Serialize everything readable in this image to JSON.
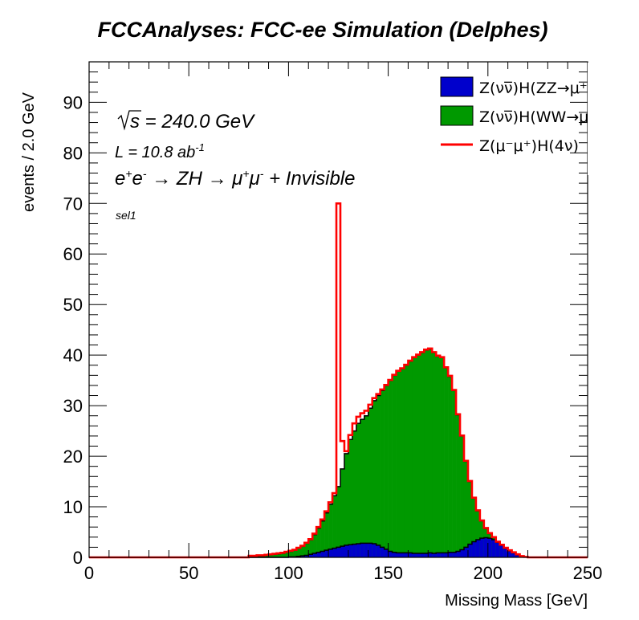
{
  "chart_data": {
    "type": "bar",
    "subtype": "stacked-histogram",
    "title": "FCCAnalyses: FCC-ee Simulation (Delphes)",
    "xlabel": "Missing Mass [GeV]",
    "ylabel": "events / 2.0 GeV",
    "xlim": [
      0,
      250
    ],
    "ylim": [
      0,
      98
    ],
    "bin_width": 2.0,
    "x_ticks": [
      0,
      50,
      100,
      150,
      200,
      250
    ],
    "y_ticks": [
      0,
      10,
      20,
      30,
      40,
      50,
      60,
      70,
      80,
      90
    ],
    "grid": false,
    "legend_position": "top-right",
    "annotations": {
      "sqrt_s": "√s = 240.0 GeV",
      "sqrt_symbol": "√",
      "sqrt_s_text": "s = 240.0 GeV",
      "lumi_prefix": "L = 10.8 ab",
      "lumi_exp": "-1",
      "process_parts": [
        "e",
        "+",
        "e",
        "-",
        " → ZH  → μ",
        "+",
        "μ",
        "-",
        " + Invisible"
      ],
      "process": "e+e- → ZH → μ+μ- + Invisible",
      "selection": "sel1"
    },
    "bin_edges_start": 80,
    "series": [
      {
        "name": "Z(νν̅)H(ZZ→μ+μ-ν̅ν)",
        "legend_label": "Z(νν̅)H(ZZ→μ⁺μ⁻ν̅ν",
        "style": "fill",
        "color": "#0000cc",
        "values": [
          0,
          0,
          0,
          0,
          0,
          0,
          0,
          0,
          0,
          0,
          0.1,
          0.1,
          0.2,
          0.3,
          0.4,
          0.6,
          0.8,
          1.0,
          1.2,
          1.4,
          1.6,
          1.8,
          2.0,
          2.2,
          2.4,
          2.5,
          2.6,
          2.7,
          2.8,
          2.8,
          2.8,
          2.7,
          2.4,
          2.0,
          1.6,
          1.2,
          1.0,
          0.9,
          0.9,
          0.9,
          0.9,
          0.8,
          0.8,
          0.8,
          0.8,
          0.9,
          0.8,
          0.9,
          0.9,
          0.9,
          1.0,
          1.0,
          1.2,
          1.5,
          2.0,
          2.6,
          3.1,
          3.5,
          3.8,
          3.9,
          3.8,
          3.5,
          3.0,
          2.4,
          1.8,
          1.3,
          0.9,
          0.5,
          0.2,
          0.05
        ]
      },
      {
        "name": "Z(νν̅)H(WW→μ+νμ-ν̅)",
        "legend_label": "Z(νν̅)H(WW→μ⁺νμ",
        "style": "fill",
        "color": "#009900",
        "values": [
          0.2,
          0.2,
          0.3,
          0.3,
          0.4,
          0.5,
          0.6,
          0.7,
          0.8,
          1.0,
          1.1,
          1.3,
          1.6,
          1.9,
          2.4,
          2.9,
          3.7,
          4.8,
          6.0,
          7.4,
          8.9,
          10.4,
          12.0,
          15.3,
          18.1,
          20.8,
          22.4,
          23.8,
          24.5,
          25.2,
          26.7,
          28.3,
          29.6,
          31.0,
          32.4,
          33.8,
          35.0,
          35.9,
          36.4,
          37.1,
          37.9,
          38.7,
          39.2,
          39.7,
          40.2,
          40.3,
          39.7,
          38.9,
          38.6,
          36.6,
          34.8,
          32.0,
          27.0,
          22.5,
          17.0,
          12.4,
          8.6,
          5.7,
          3.4,
          1.8,
          0.9,
          0.4,
          0.0,
          0.0,
          0.0,
          0.0,
          0.0,
          0.0,
          0.0,
          0.0
        ]
      },
      {
        "name": "Z(μ-μ+)H(4ν)",
        "legend_label": "Z(μ⁻μ⁺)H(4ν)",
        "style": "line",
        "color": "#ff0000",
        "values": [
          0.1,
          0.1,
          0.1,
          0.1,
          0.1,
          0.1,
          0.1,
          0.1,
          0.1,
          0.1,
          0.1,
          0.1,
          0.1,
          0.1,
          0.1,
          0.1,
          0.2,
          0.2,
          0.3,
          0.3,
          0.4,
          0.5,
          56.0,
          5.5,
          0.5,
          0.9,
          1.5,
          1.3,
          1.2,
          1.0,
          0.7,
          0.5,
          0.3,
          0.2,
          0.1,
          0.1,
          0.1,
          0.1,
          0.1,
          0.1,
          0.1,
          0.1,
          0.1,
          0.1,
          0.1,
          0.1,
          0.1,
          0.1,
          0.1,
          0.1,
          0.1,
          0.1,
          0.1,
          0.1,
          0.1,
          0.1,
          0.1,
          0.1,
          0.1,
          0.1,
          0.1,
          0.1,
          0.1,
          0.1,
          0.1,
          0.1,
          0.1,
          0.1,
          0.05,
          0.05
        ]
      }
    ]
  }
}
